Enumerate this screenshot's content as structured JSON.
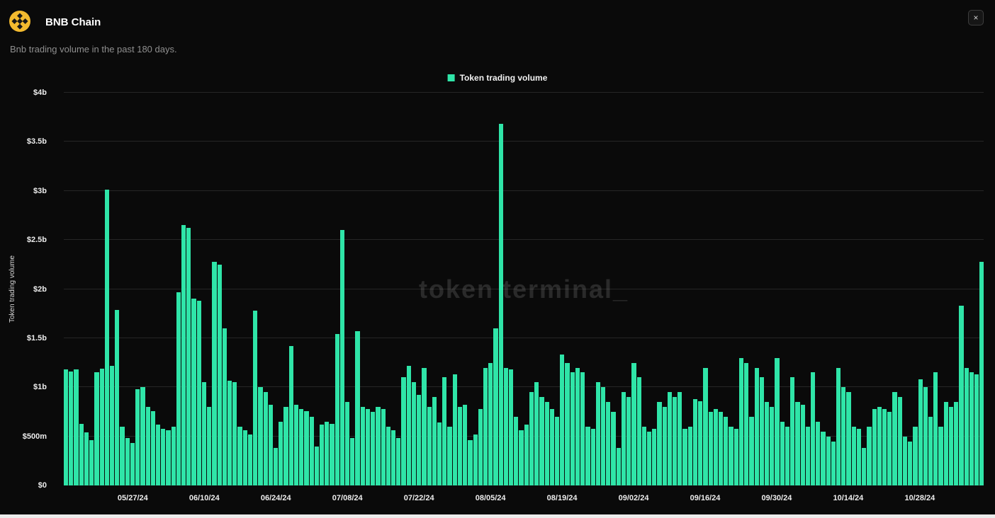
{
  "header": {
    "title": "BNB Chain",
    "subtitle": "Bnb trading volume in the past 180 days.",
    "close_label": "×"
  },
  "legend": {
    "label": "Token trading volume"
  },
  "watermark": "token terminal_",
  "colors": {
    "accent_green": "#2fe5a8",
    "logo_yellow": "#f3ba2f",
    "background": "#0a0a0a",
    "gridline": "#262626"
  },
  "chart_data": {
    "type": "bar",
    "title": "Bnb trading volume in the past 180 days",
    "ylabel": "Token trading volume",
    "xlabel": "",
    "unit": "$m",
    "ylim": [
      0,
      4000
    ],
    "y_tick_values": [
      0,
      500,
      1000,
      1500,
      2000,
      2500,
      3000,
      3500,
      4000
    ],
    "y_tick_labels": [
      "$0",
      "$500m",
      "$1b",
      "$1.5b",
      "$2b",
      "$2.5b",
      "$3b",
      "$3.5b",
      "$4b"
    ],
    "x_tick_labels": [
      "05/27/24",
      "06/10/24",
      "06/24/24",
      "07/08/24",
      "07/22/24",
      "08/05/24",
      "08/19/24",
      "09/02/24",
      "09/16/24",
      "09/30/24",
      "10/14/24",
      "10/28/24"
    ],
    "x_tick_indices": [
      13,
      27,
      41,
      55,
      69,
      83,
      97,
      111,
      125,
      139,
      153,
      167
    ],
    "num_days": 180,
    "values": [
      1180,
      1160,
      1180,
      630,
      540,
      460,
      1150,
      1190,
      3010,
      1220,
      1790,
      600,
      480,
      430,
      980,
      1000,
      800,
      760,
      620,
      580,
      560,
      600,
      1970,
      2650,
      2620,
      1900,
      1880,
      1050,
      800,
      2280,
      2250,
      1600,
      1070,
      1050,
      600,
      560,
      520,
      1780,
      1000,
      950,
      820,
      380,
      650,
      800,
      1420,
      820,
      780,
      760,
      700,
      400,
      620,
      650,
      630,
      1540,
      2600,
      850,
      480,
      1570,
      800,
      780,
      750,
      800,
      780,
      600,
      560,
      480,
      1100,
      1220,
      1050,
      920,
      1200,
      800,
      900,
      640,
      1100,
      600,
      1130,
      800,
      820,
      460,
      520,
      780,
      1200,
      1250,
      1600,
      3680,
      1200,
      1180,
      700,
      560,
      620,
      950,
      1050,
      900,
      850,
      780,
      700,
      1330,
      1250,
      1150,
      1200,
      1150,
      600,
      580,
      1050,
      1000,
      850,
      750,
      380,
      950,
      900,
      1250,
      1100,
      600,
      550,
      580,
      850,
      800,
      950,
      900,
      950,
      580,
      600,
      880,
      860,
      1200,
      750,
      780,
      750,
      700,
      600,
      580,
      1300,
      1250,
      700,
      1200,
      1100,
      850,
      800,
      1300,
      650,
      600,
      1100,
      850,
      820,
      600,
      1150,
      650,
      550,
      500,
      450,
      1200,
      1000,
      950,
      600,
      580,
      380,
      600,
      780,
      800,
      780,
      750,
      950,
      900,
      500,
      450,
      600,
      1080,
      1000,
      700,
      1150,
      600,
      850,
      800,
      850,
      1830,
      1200,
      1150,
      1130,
      2280
    ]
  }
}
